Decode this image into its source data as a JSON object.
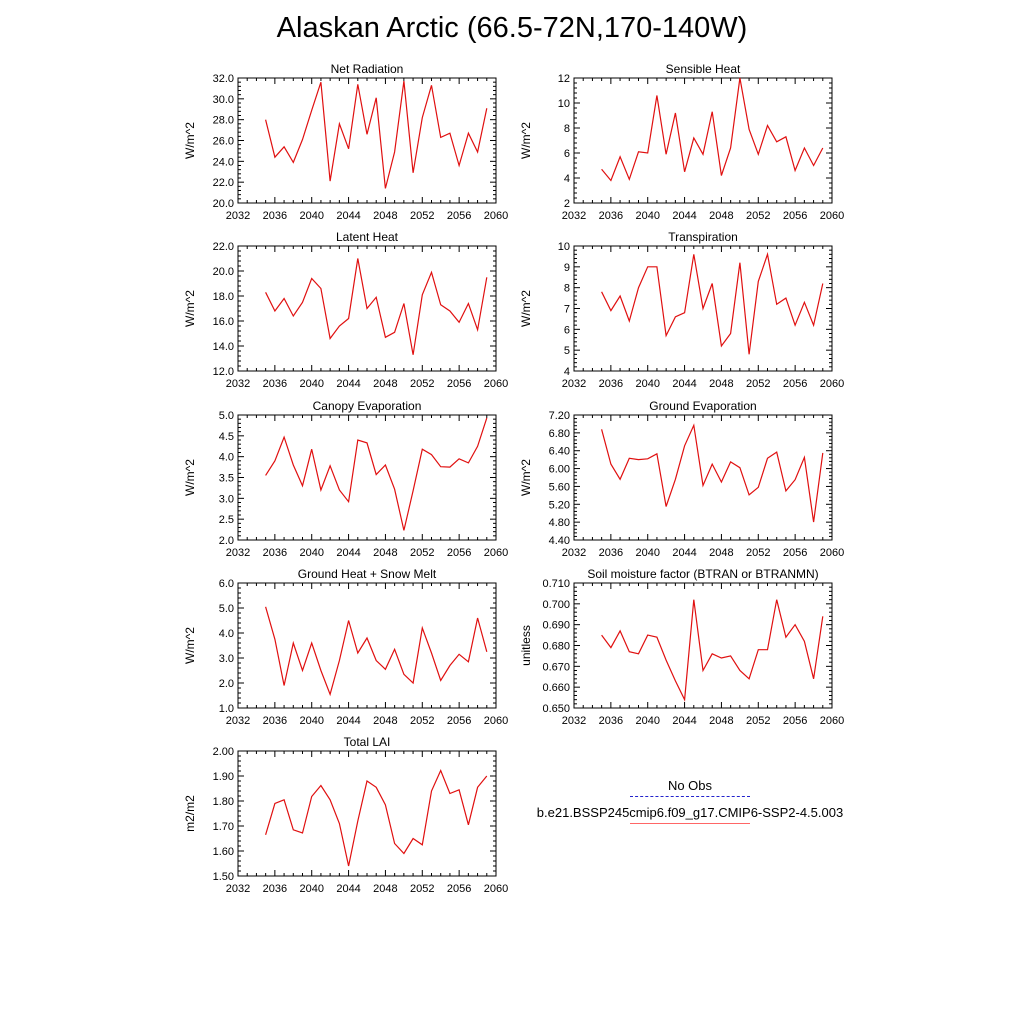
{
  "title": "Alaskan Arctic (66.5-72N,170-140W)",
  "legend": {
    "obs_label": "No Obs",
    "obs_color": "#2222cc",
    "model_label": "b.e21.BSSP245cmip6.f09_g17.CMIP6-SSP2-4.5.003",
    "model_color": "#e01010"
  },
  "chart_data": [
    {
      "type": "line",
      "title": "Net Radiation",
      "ylabel": "W/m^2",
      "xlim": [
        2032,
        2060
      ],
      "ylim": [
        20.0,
        32.0
      ],
      "xticks": [
        "2032",
        "2036",
        "2040",
        "2044",
        "2048",
        "2052",
        "2056",
        "2060"
      ],
      "yticks": [
        "20.0",
        "22.0",
        "24.0",
        "26.0",
        "28.0",
        "30.0",
        "32.0"
      ],
      "x": [
        2035,
        2036,
        2037,
        2038,
        2039,
        2040,
        2041,
        2042,
        2043,
        2044,
        2045,
        2046,
        2047,
        2048,
        2049,
        2050,
        2051,
        2052,
        2053,
        2054,
        2055,
        2056,
        2057,
        2058,
        2059
      ],
      "values": [
        28.0,
        24.4,
        25.4,
        23.9,
        26.1,
        28.9,
        31.6,
        22.1,
        27.6,
        25.2,
        31.4,
        26.6,
        30.1,
        21.4,
        24.9,
        31.7,
        22.9,
        28.2,
        31.3,
        26.3,
        26.7,
        23.6,
        26.7,
        24.9,
        29.1
      ]
    },
    {
      "type": "line",
      "title": "Sensible Heat",
      "ylabel": "W/m^2",
      "xlim": [
        2032,
        2060
      ],
      "ylim": [
        2,
        12
      ],
      "xticks": [
        "2032",
        "2036",
        "2040",
        "2044",
        "2048",
        "2052",
        "2056",
        "2060"
      ],
      "yticks": [
        "2",
        "4",
        "6",
        "8",
        "10",
        "12"
      ],
      "x": [
        2035,
        2036,
        2037,
        2038,
        2039,
        2040,
        2041,
        2042,
        2043,
        2044,
        2045,
        2046,
        2047,
        2048,
        2049,
        2050,
        2051,
        2052,
        2053,
        2054,
        2055,
        2056,
        2057,
        2058,
        2059
      ],
      "values": [
        4.7,
        3.8,
        5.7,
        3.9,
        6.1,
        6.0,
        10.6,
        5.9,
        9.2,
        4.5,
        7.2,
        5.9,
        9.3,
        4.2,
        6.4,
        12.0,
        7.9,
        5.9,
        8.2,
        6.9,
        7.3,
        4.6,
        6.4,
        5.0,
        6.4
      ]
    },
    {
      "type": "line",
      "title": "Latent Heat",
      "ylabel": "W/m^2",
      "xlim": [
        2032,
        2060
      ],
      "ylim": [
        12.0,
        22.0
      ],
      "xticks": [
        "2032",
        "2036",
        "2040",
        "2044",
        "2048",
        "2052",
        "2056",
        "2060"
      ],
      "yticks": [
        "12.0",
        "14.0",
        "16.0",
        "18.0",
        "20.0",
        "22.0"
      ],
      "x": [
        2035,
        2036,
        2037,
        2038,
        2039,
        2040,
        2041,
        2042,
        2043,
        2044,
        2045,
        2046,
        2047,
        2048,
        2049,
        2050,
        2051,
        2052,
        2053,
        2054,
        2055,
        2056,
        2057,
        2058,
        2059
      ],
      "values": [
        18.3,
        16.8,
        17.8,
        16.4,
        17.5,
        19.4,
        18.6,
        14.6,
        15.6,
        16.2,
        21.0,
        17.0,
        17.9,
        14.7,
        15.1,
        17.4,
        13.3,
        18.1,
        19.9,
        17.3,
        16.8,
        15.9,
        17.4,
        15.3,
        19.5
      ]
    },
    {
      "type": "line",
      "title": "Transpiration",
      "ylabel": "W/m^2",
      "xlim": [
        2032,
        2060
      ],
      "ylim": [
        4,
        10
      ],
      "xticks": [
        "2032",
        "2036",
        "2040",
        "2044",
        "2048",
        "2052",
        "2056",
        "2060"
      ],
      "yticks": [
        "4",
        "5",
        "6",
        "7",
        "8",
        "9",
        "10"
      ],
      "x": [
        2035,
        2036,
        2037,
        2038,
        2039,
        2040,
        2041,
        2042,
        2043,
        2044,
        2045,
        2046,
        2047,
        2048,
        2049,
        2050,
        2051,
        2052,
        2053,
        2054,
        2055,
        2056,
        2057,
        2058,
        2059
      ],
      "values": [
        7.8,
        6.9,
        7.6,
        6.4,
        8.0,
        9.0,
        9.0,
        5.7,
        6.6,
        6.8,
        9.6,
        7.0,
        8.2,
        5.2,
        5.8,
        9.2,
        4.8,
        8.3,
        9.6,
        7.2,
        7.5,
        6.2,
        7.3,
        6.2,
        8.2
      ]
    },
    {
      "type": "line",
      "title": "Canopy Evaporation",
      "ylabel": "W/m^2",
      "xlim": [
        2032,
        2060
      ],
      "ylim": [
        2.0,
        5.0
      ],
      "xticks": [
        "2032",
        "2036",
        "2040",
        "2044",
        "2048",
        "2052",
        "2056",
        "2060"
      ],
      "yticks": [
        "2.0",
        "2.5",
        "3.0",
        "3.5",
        "4.0",
        "4.5",
        "5.0"
      ],
      "x": [
        2035,
        2036,
        2037,
        2038,
        2039,
        2040,
        2041,
        2042,
        2043,
        2044,
        2045,
        2046,
        2047,
        2048,
        2049,
        2050,
        2051,
        2052,
        2053,
        2054,
        2055,
        2056,
        2057,
        2058,
        2059
      ],
      "values": [
        3.55,
        3.9,
        4.47,
        3.8,
        3.3,
        4.18,
        3.2,
        3.78,
        3.2,
        2.92,
        4.4,
        4.33,
        3.57,
        3.8,
        3.22,
        2.23,
        3.18,
        4.18,
        4.05,
        3.76,
        3.75,
        3.95,
        3.85,
        4.25,
        4.93
      ]
    },
    {
      "type": "line",
      "title": "Ground Evaporation",
      "ylabel": "W/m^2",
      "xlim": [
        2032,
        2060
      ],
      "ylim": [
        4.4,
        7.2
      ],
      "xticks": [
        "2032",
        "2036",
        "2040",
        "2044",
        "2048",
        "2052",
        "2056",
        "2060"
      ],
      "yticks": [
        "4.40",
        "4.80",
        "5.20",
        "5.60",
        "6.00",
        "6.40",
        "6.80",
        "7.20"
      ],
      "x": [
        2035,
        2036,
        2037,
        2038,
        2039,
        2040,
        2041,
        2042,
        2043,
        2044,
        2045,
        2046,
        2047,
        2048,
        2049,
        2050,
        2051,
        2052,
        2053,
        2054,
        2055,
        2056,
        2057,
        2058,
        2059
      ],
      "values": [
        6.88,
        6.1,
        5.76,
        6.23,
        6.2,
        6.22,
        6.33,
        5.15,
        5.76,
        6.51,
        6.97,
        5.62,
        6.1,
        5.7,
        6.15,
        6.02,
        5.41,
        5.58,
        6.23,
        6.37,
        5.5,
        5.75,
        6.25,
        4.8,
        6.35
      ]
    },
    {
      "type": "line",
      "title": "Ground Heat + Snow Melt",
      "ylabel": "W/m^2",
      "xlim": [
        2032,
        2060
      ],
      "ylim": [
        1.0,
        6.0
      ],
      "xticks": [
        "2032",
        "2036",
        "2040",
        "2044",
        "2048",
        "2052",
        "2056",
        "2060"
      ],
      "yticks": [
        "1.0",
        "2.0",
        "3.0",
        "4.0",
        "5.0",
        "6.0"
      ],
      "x": [
        2035,
        2036,
        2037,
        2038,
        2039,
        2040,
        2041,
        2042,
        2043,
        2044,
        2045,
        2046,
        2047,
        2048,
        2049,
        2050,
        2051,
        2052,
        2053,
        2054,
        2055,
        2056,
        2057,
        2058,
        2059
      ],
      "values": [
        5.05,
        3.75,
        1.9,
        3.6,
        2.5,
        3.6,
        2.5,
        1.55,
        2.9,
        4.5,
        3.2,
        3.8,
        2.9,
        2.55,
        3.35,
        2.35,
        2.0,
        4.2,
        3.2,
        2.1,
        2.7,
        3.15,
        2.85,
        4.6,
        3.25
      ]
    },
    {
      "type": "line",
      "title": "Soil moisture factor (BTRAN or BTRANMN)",
      "ylabel": "unitless",
      "xlim": [
        2032,
        2060
      ],
      "ylim": [
        0.65,
        0.71
      ],
      "xticks": [
        "2032",
        "2036",
        "2040",
        "2044",
        "2048",
        "2052",
        "2056",
        "2060"
      ],
      "yticks": [
        "0.650",
        "0.660",
        "0.670",
        "0.680",
        "0.690",
        "0.700",
        "0.710"
      ],
      "x": [
        2035,
        2036,
        2037,
        2038,
        2039,
        2040,
        2041,
        2042,
        2043,
        2044,
        2045,
        2046,
        2047,
        2048,
        2049,
        2050,
        2051,
        2052,
        2053,
        2054,
        2055,
        2056,
        2057,
        2058,
        2059
      ],
      "values": [
        0.685,
        0.679,
        0.687,
        0.677,
        0.676,
        0.685,
        0.684,
        0.673,
        0.663,
        0.654,
        0.702,
        0.668,
        0.676,
        0.674,
        0.675,
        0.668,
        0.664,
        0.678,
        0.678,
        0.702,
        0.684,
        0.69,
        0.682,
        0.664,
        0.694
      ]
    },
    {
      "type": "line",
      "title": "Total LAI",
      "ylabel": "m2/m2",
      "xlim": [
        2032,
        2060
      ],
      "ylim": [
        1.5,
        2.0
      ],
      "xticks": [
        "2032",
        "2036",
        "2040",
        "2044",
        "2048",
        "2052",
        "2056",
        "2060"
      ],
      "yticks": [
        "1.50",
        "1.60",
        "1.70",
        "1.80",
        "1.90",
        "2.00"
      ],
      "x": [
        2035,
        2036,
        2037,
        2038,
        2039,
        2040,
        2041,
        2042,
        2043,
        2044,
        2045,
        2046,
        2047,
        2048,
        2049,
        2050,
        2051,
        2052,
        2053,
        2054,
        2055,
        2056,
        2057,
        2058,
        2059
      ],
      "values": [
        1.665,
        1.79,
        1.805,
        1.685,
        1.672,
        1.818,
        1.862,
        1.805,
        1.71,
        1.54,
        1.72,
        1.88,
        1.855,
        1.785,
        1.63,
        1.59,
        1.65,
        1.625,
        1.84,
        1.922,
        1.83,
        1.845,
        1.705,
        1.855,
        1.9
      ]
    }
  ]
}
